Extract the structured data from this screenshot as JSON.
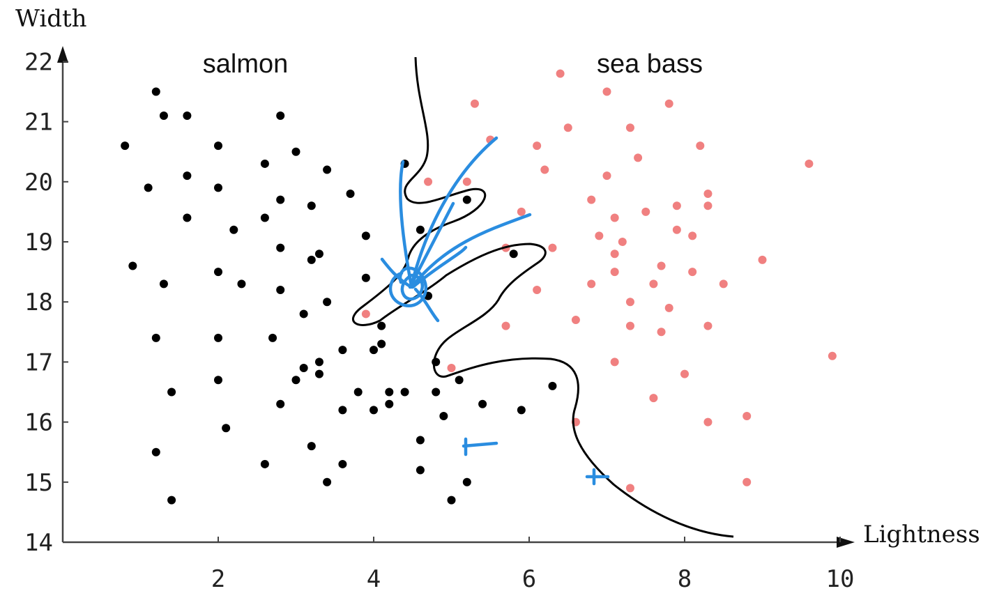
{
  "chart_data": {
    "type": "scatter",
    "xlabel": "Lightness",
    "ylabel": "Width",
    "xlim": [
      0,
      11.8
    ],
    "ylim": [
      14,
      22.1
    ],
    "x_ticks": [
      2,
      4,
      6,
      8,
      10
    ],
    "y_ticks": [
      14,
      15,
      16,
      17,
      18,
      19,
      20,
      21,
      22
    ],
    "annotations": [
      "salmon",
      "sea bass"
    ],
    "series": [
      {
        "name": "salmon",
        "color": "#000000",
        "points": [
          [
            1.2,
            21.5
          ],
          [
            1.3,
            21.1
          ],
          [
            1.6,
            21.1
          ],
          [
            2.8,
            21.1
          ],
          [
            0.8,
            20.6
          ],
          [
            2.0,
            20.6
          ],
          [
            3.0,
            20.5
          ],
          [
            2.6,
            20.3
          ],
          [
            3.4,
            20.2
          ],
          [
            1.6,
            20.1
          ],
          [
            1.1,
            19.9
          ],
          [
            2.0,
            19.9
          ],
          [
            3.7,
            19.8
          ],
          [
            2.8,
            19.7
          ],
          [
            3.2,
            19.6
          ],
          [
            1.6,
            19.4
          ],
          [
            2.6,
            19.4
          ],
          [
            2.2,
            19.2
          ],
          [
            3.9,
            19.1
          ],
          [
            2.8,
            18.9
          ],
          [
            3.3,
            18.8
          ],
          [
            3.2,
            18.7
          ],
          [
            0.9,
            18.6
          ],
          [
            2.0,
            18.5
          ],
          [
            3.9,
            18.4
          ],
          [
            1.3,
            18.3
          ],
          [
            2.3,
            18.3
          ],
          [
            2.8,
            18.2
          ],
          [
            3.4,
            18.0
          ],
          [
            3.1,
            17.8
          ],
          [
            4.1,
            17.6
          ],
          [
            4.1,
            17.3
          ],
          [
            4.0,
            17.2
          ],
          [
            1.2,
            17.4
          ],
          [
            2.0,
            17.4
          ],
          [
            2.7,
            17.4
          ],
          [
            3.6,
            17.2
          ],
          [
            3.3,
            17.0
          ],
          [
            3.1,
            16.9
          ],
          [
            3.3,
            16.8
          ],
          [
            2.0,
            16.7
          ],
          [
            3.0,
            16.7
          ],
          [
            4.2,
            16.5
          ],
          [
            1.4,
            16.5
          ],
          [
            3.8,
            16.5
          ],
          [
            2.8,
            16.3
          ],
          [
            3.6,
            16.2
          ],
          [
            4.0,
            16.2
          ],
          [
            4.2,
            16.3
          ],
          [
            2.1,
            15.9
          ],
          [
            3.2,
            15.6
          ],
          [
            1.2,
            15.5
          ],
          [
            2.6,
            15.3
          ],
          [
            3.6,
            15.3
          ],
          [
            3.4,
            15.0
          ],
          [
            1.4,
            14.7
          ],
          [
            4.4,
            20.3
          ],
          [
            4.6,
            19.2
          ],
          [
            4.7,
            18.1
          ],
          [
            4.8,
            17.0
          ],
          [
            4.4,
            16.5
          ],
          [
            4.8,
            16.5
          ],
          [
            4.9,
            16.1
          ],
          [
            4.6,
            15.7
          ],
          [
            4.6,
            15.2
          ],
          [
            5.1,
            16.7
          ],
          [
            5.4,
            16.3
          ],
          [
            5.2,
            15.0
          ],
          [
            5.0,
            14.7
          ],
          [
            5.9,
            16.2
          ],
          [
            5.8,
            18.8
          ],
          [
            6.3,
            16.6
          ],
          [
            5.2,
            19.7
          ]
        ]
      },
      {
        "name": "sea bass",
        "color": "#f08080",
        "points": [
          [
            6.4,
            21.8
          ],
          [
            7.0,
            21.5
          ],
          [
            5.3,
            21.3
          ],
          [
            7.8,
            21.3
          ],
          [
            6.5,
            20.9
          ],
          [
            7.3,
            20.9
          ],
          [
            5.5,
            20.7
          ],
          [
            6.1,
            20.6
          ],
          [
            8.2,
            20.6
          ],
          [
            7.4,
            20.4
          ],
          [
            9.6,
            20.3
          ],
          [
            6.2,
            20.2
          ],
          [
            7.0,
            20.1
          ],
          [
            4.7,
            20.0
          ],
          [
            5.2,
            20.0
          ],
          [
            8.3,
            19.8
          ],
          [
            6.8,
            19.7
          ],
          [
            7.9,
            19.6
          ],
          [
            8.3,
            19.6
          ],
          [
            7.5,
            19.5
          ],
          [
            5.9,
            19.5
          ],
          [
            7.1,
            19.4
          ],
          [
            7.9,
            19.2
          ],
          [
            8.1,
            19.1
          ],
          [
            6.9,
            19.1
          ],
          [
            7.2,
            19.0
          ],
          [
            5.7,
            18.9
          ],
          [
            6.3,
            18.9
          ],
          [
            7.1,
            18.8
          ],
          [
            9.0,
            18.7
          ],
          [
            7.7,
            18.6
          ],
          [
            7.1,
            18.5
          ],
          [
            8.1,
            18.5
          ],
          [
            6.8,
            18.3
          ],
          [
            7.6,
            18.3
          ],
          [
            8.5,
            18.3
          ],
          [
            6.1,
            18.2
          ],
          [
            7.3,
            18.0
          ],
          [
            7.8,
            17.9
          ],
          [
            3.9,
            17.8
          ],
          [
            6.6,
            17.7
          ],
          [
            5.7,
            17.6
          ],
          [
            7.3,
            17.6
          ],
          [
            7.7,
            17.5
          ],
          [
            8.3,
            17.6
          ],
          [
            9.9,
            17.1
          ],
          [
            7.1,
            17.0
          ],
          [
            5.0,
            16.9
          ],
          [
            8.0,
            16.8
          ],
          [
            7.6,
            16.4
          ],
          [
            8.8,
            16.1
          ],
          [
            6.6,
            16.0
          ],
          [
            8.3,
            16.0
          ],
          [
            7.3,
            14.9
          ],
          [
            8.8,
            15.0
          ]
        ]
      }
    ]
  }
}
